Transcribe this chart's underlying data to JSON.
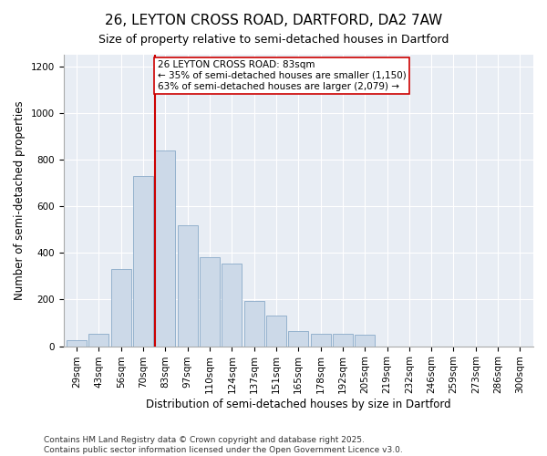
{
  "title": "26, LEYTON CROSS ROAD, DARTFORD, DA2 7AW",
  "subtitle": "Size of property relative to semi-detached houses in Dartford",
  "xlabel": "Distribution of semi-detached houses by size in Dartford",
  "ylabel": "Number of semi-detached properties",
  "categories": [
    "29sqm",
    "43sqm",
    "56sqm",
    "70sqm",
    "83sqm",
    "97sqm",
    "110sqm",
    "124sqm",
    "137sqm",
    "151sqm",
    "165sqm",
    "178sqm",
    "192sqm",
    "205sqm",
    "219sqm",
    "232sqm",
    "246sqm",
    "259sqm",
    "273sqm",
    "286sqm",
    "300sqm"
  ],
  "values": [
    25,
    55,
    330,
    730,
    840,
    520,
    380,
    355,
    195,
    130,
    65,
    55,
    55,
    50,
    0,
    0,
    0,
    0,
    0,
    0,
    0
  ],
  "bar_color": "#ccd9e8",
  "bar_edge_color": "#8aaac8",
  "vline_color": "#cc0000",
  "annotation_text": "26 LEYTON CROSS ROAD: 83sqm\n← 35% of semi-detached houses are smaller (1,150)\n63% of semi-detached houses are larger (2,079) →",
  "annotation_box_color": "#ffffff",
  "annotation_box_edge": "#cc0000",
  "ylim": [
    0,
    1250
  ],
  "yticks": [
    0,
    200,
    400,
    600,
    800,
    1000,
    1200
  ],
  "background_color": "#e8edf4",
  "footer": "Contains HM Land Registry data © Crown copyright and database right 2025.\nContains public sector information licensed under the Open Government Licence v3.0.",
  "title_fontsize": 11,
  "subtitle_fontsize": 9,
  "xlabel_fontsize": 8.5,
  "ylabel_fontsize": 8.5,
  "tick_fontsize": 7.5,
  "annotation_fontsize": 7.5,
  "footer_fontsize": 6.5
}
